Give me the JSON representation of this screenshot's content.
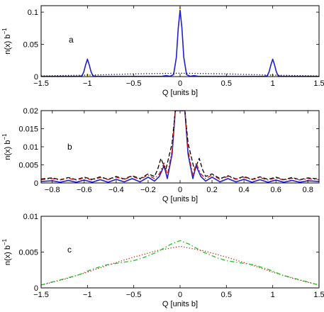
{
  "chart_data": [
    {
      "panel": "a",
      "type": "line",
      "annotation": "a",
      "xlabel": "Q [units b]",
      "ylabel": "n(x) b",
      "ylabel_sup": "−1",
      "xlim": [
        -1.5,
        1.5
      ],
      "ylim": [
        0,
        0.11
      ],
      "xticks": [
        -1.5,
        -1,
        -0.5,
        0,
        0.5,
        1,
        1.5
      ],
      "xtick_labels": [
        "−1.5",
        "−1",
        "−0.5",
        "0",
        "0.5",
        "1",
        "1.5"
      ],
      "yticks": [
        0,
        0.05,
        0.1
      ],
      "ytick_labels": [
        "0",
        "0.05",
        "0.1"
      ],
      "series": [
        {
          "style": "solid",
          "color": "#1f1fd0",
          "points": [
            [
              -1.5,
              0.0003
            ],
            [
              -1.1,
              0.0003
            ],
            [
              -1.06,
              0.001
            ],
            [
              -1.04,
              0.007
            ],
            [
              -1.02,
              0.018
            ],
            [
              -1.0,
              0.027
            ],
            [
              -0.98,
              0.018
            ],
            [
              -0.96,
              0.007
            ],
            [
              -0.94,
              0.001
            ],
            [
              -0.9,
              0.0003
            ],
            [
              -0.2,
              0.0004
            ],
            [
              -0.15,
              0.0015
            ],
            [
              -0.11,
              0.0005
            ],
            [
              -0.07,
              0.003
            ],
            [
              -0.04,
              0.03
            ],
            [
              -0.02,
              0.075
            ],
            [
              0,
              0.103
            ],
            [
              0.02,
              0.075
            ],
            [
              0.04,
              0.03
            ],
            [
              0.07,
              0.003
            ],
            [
              0.11,
              0.0005
            ],
            [
              0.15,
              0.0015
            ],
            [
              0.2,
              0.0004
            ],
            [
              0.9,
              0.0003
            ],
            [
              0.94,
              0.001
            ],
            [
              0.96,
              0.007
            ],
            [
              0.98,
              0.018
            ],
            [
              1.0,
              0.027
            ],
            [
              1.02,
              0.018
            ],
            [
              1.04,
              0.007
            ],
            [
              1.06,
              0.001
            ],
            [
              1.1,
              0.0003
            ],
            [
              1.5,
              0.0003
            ]
          ]
        },
        {
          "style": "dotted",
          "color": "#000000",
          "points": [
            [
              -1.5,
              0.001
            ],
            [
              -1.0,
              0.0022
            ],
            [
              -0.5,
              0.0042
            ],
            [
              0,
              0.0052
            ],
            [
              0.5,
              0.0042
            ],
            [
              1.0,
              0.0022
            ],
            [
              1.5,
              0.001
            ]
          ]
        }
      ],
      "markers": [
        {
          "x": -1.0,
          "y": 0.0025,
          "color": "#c8a000"
        },
        {
          "x": 0.0,
          "y": 0.106,
          "color": "#c8a000"
        },
        {
          "x": 1.0,
          "y": 0.0025,
          "color": "#c8a000"
        }
      ]
    },
    {
      "panel": "b",
      "type": "line",
      "annotation": "b",
      "xlabel": "Q [units b]",
      "ylabel": "n(x) b",
      "ylabel_sup": "−1",
      "xlim": [
        -0.87,
        0.87
      ],
      "ylim": [
        0,
        0.02
      ],
      "xticks": [
        -0.8,
        -0.6,
        -0.4,
        -0.2,
        0,
        0.2,
        0.4,
        0.6,
        0.8
      ],
      "xtick_labels": [
        "−0.8",
        "−0.6",
        "−0.4",
        "−0.2",
        "0",
        "0.2",
        "0.4",
        "0.6",
        "0.8"
      ],
      "yticks": [
        0,
        0.005,
        0.01,
        0.015,
        0.02
      ],
      "ytick_labels": [
        "0",
        "0.005",
        "0.01",
        "0.015",
        "0.02"
      ],
      "series": [
        {
          "style": "solid",
          "color": "#1f1fd0",
          "points": [
            [
              -0.87,
              0.0004
            ],
            [
              -0.8,
              0.0006
            ],
            [
              -0.75,
              0.0002
            ],
            [
              -0.7,
              0.0007
            ],
            [
              -0.65,
              0.0002
            ],
            [
              -0.6,
              0.0008
            ],
            [
              -0.55,
              0.0002
            ],
            [
              -0.5,
              0.0009
            ],
            [
              -0.45,
              0.0002
            ],
            [
              -0.4,
              0.001
            ],
            [
              -0.35,
              0.0003
            ],
            [
              -0.3,
              0.0012
            ],
            [
              -0.25,
              0.0003
            ],
            [
              -0.2,
              0.0016
            ],
            [
              -0.16,
              0.0005
            ],
            [
              -0.13,
              0.0018
            ],
            [
              -0.1,
              0.0048
            ],
            [
              -0.08,
              0.0012
            ],
            [
              -0.05,
              0.008
            ],
            [
              -0.03,
              0.02
            ],
            [
              0.03,
              0.02
            ],
            [
              0.05,
              0.008
            ],
            [
              0.08,
              0.0012
            ],
            [
              0.1,
              0.0048
            ],
            [
              0.13,
              0.0018
            ],
            [
              0.16,
              0.0005
            ],
            [
              0.2,
              0.0016
            ],
            [
              0.25,
              0.0003
            ],
            [
              0.3,
              0.0012
            ],
            [
              0.35,
              0.0003
            ],
            [
              0.4,
              0.001
            ],
            [
              0.45,
              0.0002
            ],
            [
              0.5,
              0.0009
            ],
            [
              0.55,
              0.0002
            ],
            [
              0.6,
              0.0008
            ],
            [
              0.65,
              0.0002
            ],
            [
              0.7,
              0.0007
            ],
            [
              0.75,
              0.0002
            ],
            [
              0.8,
              0.0006
            ],
            [
              0.87,
              0.0004
            ]
          ]
        },
        {
          "style": "dashed",
          "color": "#000000",
          "points": [
            [
              -0.87,
              0.0011
            ],
            [
              -0.8,
              0.0014
            ],
            [
              -0.75,
              0.0009
            ],
            [
              -0.7,
              0.0015
            ],
            [
              -0.65,
              0.0009
            ],
            [
              -0.6,
              0.0016
            ],
            [
              -0.55,
              0.001
            ],
            [
              -0.5,
              0.0017
            ],
            [
              -0.45,
              0.001
            ],
            [
              -0.4,
              0.0018
            ],
            [
              -0.35,
              0.0011
            ],
            [
              -0.3,
              0.002
            ],
            [
              -0.25,
              0.0012
            ],
            [
              -0.2,
              0.0025
            ],
            [
              -0.16,
              0.0018
            ],
            [
              -0.14,
              0.0038
            ],
            [
              -0.12,
              0.0068
            ],
            [
              -0.09,
              0.0035
            ],
            [
              -0.05,
              0.011
            ],
            [
              -0.03,
              0.02
            ],
            [
              0.03,
              0.02
            ],
            [
              0.05,
              0.011
            ],
            [
              0.09,
              0.0035
            ],
            [
              0.12,
              0.0068
            ],
            [
              0.14,
              0.0038
            ],
            [
              0.16,
              0.0018
            ],
            [
              0.2,
              0.0025
            ],
            [
              0.25,
              0.0012
            ],
            [
              0.3,
              0.002
            ],
            [
              0.35,
              0.0011
            ],
            [
              0.4,
              0.0018
            ],
            [
              0.45,
              0.001
            ],
            [
              0.5,
              0.0017
            ],
            [
              0.55,
              0.001
            ],
            [
              0.6,
              0.0016
            ],
            [
              0.65,
              0.0009
            ],
            [
              0.7,
              0.0015
            ],
            [
              0.75,
              0.0009
            ],
            [
              0.8,
              0.0014
            ],
            [
              0.87,
              0.0011
            ]
          ]
        },
        {
          "style": "dashdot",
          "color": "#d01010",
          "points": [
            [
              -0.87,
              0.0009
            ],
            [
              -0.8,
              0.0012
            ],
            [
              -0.75,
              0.0008
            ],
            [
              -0.7,
              0.0013
            ],
            [
              -0.65,
              0.0008
            ],
            [
              -0.6,
              0.0014
            ],
            [
              -0.55,
              0.0008
            ],
            [
              -0.5,
              0.0015
            ],
            [
              -0.45,
              0.0009
            ],
            [
              -0.4,
              0.0016
            ],
            [
              -0.35,
              0.001
            ],
            [
              -0.3,
              0.0018
            ],
            [
              -0.25,
              0.001
            ],
            [
              -0.2,
              0.0022
            ],
            [
              -0.16,
              0.0012
            ],
            [
              -0.13,
              0.0025
            ],
            [
              -0.1,
              0.0055
            ],
            [
              -0.08,
              0.002
            ],
            [
              -0.05,
              0.009
            ],
            [
              -0.03,
              0.02
            ],
            [
              0.03,
              0.02
            ],
            [
              0.05,
              0.009
            ],
            [
              0.08,
              0.002
            ],
            [
              0.1,
              0.0055
            ],
            [
              0.13,
              0.0025
            ],
            [
              0.16,
              0.0012
            ],
            [
              0.2,
              0.0022
            ],
            [
              0.25,
              0.001
            ],
            [
              0.3,
              0.0018
            ],
            [
              0.35,
              0.001
            ],
            [
              0.4,
              0.0016
            ],
            [
              0.45,
              0.0009
            ],
            [
              0.5,
              0.0015
            ],
            [
              0.55,
              0.0008
            ],
            [
              0.6,
              0.0014
            ],
            [
              0.65,
              0.0008
            ],
            [
              0.7,
              0.0013
            ],
            [
              0.75,
              0.0008
            ],
            [
              0.8,
              0.0012
            ],
            [
              0.87,
              0.0009
            ]
          ]
        }
      ]
    },
    {
      "panel": "c",
      "type": "line",
      "annotation": "c",
      "xlabel": "Q [units b]",
      "ylabel": "n(x) b",
      "ylabel_sup": "−1",
      "xlim": [
        -1.5,
        1.5
      ],
      "ylim": [
        0,
        0.01
      ],
      "xticks": [
        -1.5,
        -1,
        -0.5,
        0,
        0.5,
        1,
        1.5
      ],
      "xtick_labels": [
        "−1.5",
        "−1",
        "−0.5",
        "0",
        "0.5",
        "1",
        "1.5"
      ],
      "yticks": [
        0,
        0.005,
        0.01
      ],
      "ytick_labels": [
        "0",
        "0.005",
        "0.01"
      ],
      "series": [
        {
          "style": "dotted",
          "color": "#d01010",
          "points": [
            [
              -1.5,
              0.0004
            ],
            [
              -1.25,
              0.0012
            ],
            [
              -1.0,
              0.0022
            ],
            [
              -0.75,
              0.0033
            ],
            [
              -0.5,
              0.0043
            ],
            [
              -0.25,
              0.0052
            ],
            [
              0,
              0.0058
            ],
            [
              0.25,
              0.0052
            ],
            [
              0.5,
              0.0043
            ],
            [
              0.75,
              0.0033
            ],
            [
              1.0,
              0.0022
            ],
            [
              1.25,
              0.0012
            ],
            [
              1.5,
              0.0004
            ]
          ]
        },
        {
          "style": "dashdot",
          "color": "#20c020",
          "points": [
            [
              -1.5,
              0.0004
            ],
            [
              -1.3,
              0.0011
            ],
            [
              -1.1,
              0.0018
            ],
            [
              -0.95,
              0.0026
            ],
            [
              -0.8,
              0.0032
            ],
            [
              -0.6,
              0.0036
            ],
            [
              -0.5,
              0.0038
            ],
            [
              -0.4,
              0.0042
            ],
            [
              -0.25,
              0.005
            ],
            [
              -0.1,
              0.0061
            ],
            [
              0,
              0.0066
            ],
            [
              0.1,
              0.0061
            ],
            [
              0.25,
              0.005
            ],
            [
              0.4,
              0.0042
            ],
            [
              0.5,
              0.0038
            ],
            [
              0.6,
              0.0036
            ],
            [
              0.8,
              0.0032
            ],
            [
              0.95,
              0.0026
            ],
            [
              1.1,
              0.0018
            ],
            [
              1.3,
              0.0011
            ],
            [
              1.5,
              0.0004
            ]
          ]
        }
      ]
    }
  ]
}
